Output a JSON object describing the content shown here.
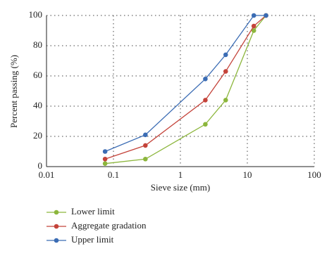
{
  "chart_data": {
    "type": "line",
    "xlabel": "Sieve size (mm)",
    "ylabel": "Percent passing (%)",
    "x": [
      0.075,
      0.3,
      2.36,
      4.75,
      12.5,
      19
    ],
    "series": [
      {
        "name": "Lower limit",
        "color": "#8cb63c",
        "values": [
          2,
          5,
          28,
          44,
          90,
          100
        ]
      },
      {
        "name": "Aggregate gradation",
        "color": "#c4433a",
        "values": [
          5,
          14,
          44,
          63,
          93,
          100
        ]
      },
      {
        "name": "Upper limit",
        "color": "#3b6cb4",
        "values": [
          10,
          21,
          58,
          74,
          100,
          100
        ]
      }
    ],
    "xscale": "log",
    "xlim": [
      0.01,
      100
    ],
    "xticks": [
      0.01,
      0.1,
      1,
      10,
      100
    ],
    "ylim": [
      0,
      100
    ],
    "yticks": [
      0,
      20,
      40,
      60,
      80,
      100
    ],
    "grid": true,
    "legend": "below"
  }
}
